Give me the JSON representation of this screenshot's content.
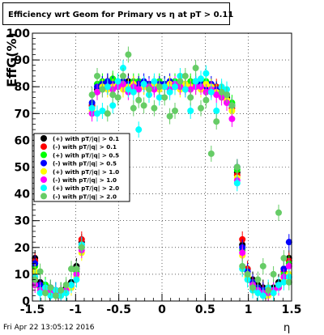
{
  "chart_data": {
    "type": "scatter",
    "title": "Efficiency wrt Geom for Primary vs  η at pT > 0.11",
    "xlabel": "η",
    "ylabel": "EffG(%)",
    "xlim": [
      -1.5,
      1.5
    ],
    "ylim": [
      0,
      100
    ],
    "x_ticks": [
      "-1.5",
      "-1",
      "-0.5",
      "0",
      "0.5",
      "1",
      "1.5"
    ],
    "y_ticks": [
      "0",
      "10",
      "20",
      "30",
      "40",
      "50",
      "60",
      "70",
      "80",
      "90",
      "100"
    ],
    "grid": true,
    "legend_position": "left-middle",
    "footer": "Fri Apr 22 13:05:12 2016",
    "series": [
      {
        "name": "(+) with pT/|q| > 0.1",
        "color": "#000000",
        "x": [
          -1.47,
          -1.41,
          -1.35,
          -1.29,
          -1.23,
          -1.17,
          -1.11,
          -1.05,
          -0.99,
          -0.93,
          -0.87,
          -0.81,
          -0.75,
          -0.69,
          -0.63,
          -0.57,
          -0.51,
          -0.45,
          -0.39,
          -0.33,
          -0.27,
          -0.21,
          -0.15,
          -0.09,
          -0.03,
          0.03,
          0.09,
          0.15,
          0.21,
          0.27,
          0.33,
          0.39,
          0.45,
          0.51,
          0.57,
          0.63,
          0.69,
          0.75,
          0.81,
          0.87,
          0.93,
          0.99,
          1.05,
          1.11,
          1.17,
          1.23,
          1.29,
          1.35,
          1.41,
          1.47
        ],
        "y": [
          16,
          7,
          6,
          5,
          4,
          4,
          5,
          7,
          13,
          22,
          49,
          73,
          79,
          81,
          82,
          81,
          80,
          81,
          82,
          81,
          80,
          81,
          81,
          80,
          80,
          81,
          80,
          80,
          81,
          81,
          80,
          81,
          80,
          81,
          80,
          79,
          78,
          76,
          73,
          48,
          21,
          12,
          8,
          6,
          5,
          4,
          5,
          7,
          12,
          16
        ]
      },
      {
        "name": "(-) with pT/|q| > 0.1",
        "color": "#ff0000",
        "x": [
          -1.47,
          -1.41,
          -1.35,
          -1.29,
          -1.23,
          -1.17,
          -1.11,
          -1.05,
          -0.99,
          -0.93,
          -0.87,
          -0.81,
          -0.75,
          -0.69,
          -0.63,
          -0.57,
          -0.51,
          -0.45,
          -0.39,
          -0.33,
          -0.27,
          -0.21,
          -0.15,
          -0.09,
          -0.03,
          0.03,
          0.09,
          0.15,
          0.21,
          0.27,
          0.33,
          0.39,
          0.45,
          0.51,
          0.57,
          0.63,
          0.69,
          0.75,
          0.81,
          0.87,
          0.93,
          0.99,
          1.05,
          1.11,
          1.17,
          1.23,
          1.29,
          1.35,
          1.41,
          1.47
        ],
        "y": [
          15,
          6,
          5,
          4,
          4,
          3,
          4,
          6,
          12,
          23,
          50,
          73,
          80,
          81,
          81,
          82,
          81,
          80,
          81,
          81,
          81,
          80,
          81,
          81,
          80,
          80,
          81,
          81,
          80,
          80,
          81,
          80,
          81,
          80,
          79,
          80,
          78,
          75,
          72,
          47,
          23,
          12,
          7,
          5,
          4,
          4,
          4,
          6,
          11,
          15
        ]
      },
      {
        "name": "(+) with pT/|q| > 0.5",
        "color": "#00ff00",
        "x": [
          -1.47,
          -1.41,
          -1.35,
          -1.29,
          -1.23,
          -1.17,
          -1.11,
          -1.05,
          -0.99,
          -0.93,
          -0.87,
          -0.81,
          -0.75,
          -0.69,
          -0.63,
          -0.57,
          -0.51,
          -0.45,
          -0.39,
          -0.33,
          -0.27,
          -0.21,
          -0.15,
          -0.09,
          -0.03,
          0.03,
          0.09,
          0.15,
          0.21,
          0.27,
          0.33,
          0.39,
          0.45,
          0.51,
          0.57,
          0.63,
          0.69,
          0.75,
          0.81,
          0.87,
          0.93,
          0.99,
          1.05,
          1.11,
          1.17,
          1.23,
          1.29,
          1.35,
          1.41,
          1.47
        ],
        "y": [
          13,
          5,
          6,
          4,
          3,
          4,
          3,
          6,
          11,
          20,
          51,
          72,
          81,
          82,
          80,
          83,
          82,
          81,
          80,
          82,
          82,
          81,
          80,
          81,
          82,
          81,
          80,
          82,
          81,
          80,
          82,
          81,
          81,
          82,
          80,
          79,
          79,
          77,
          74,
          49,
          19,
          10,
          6,
          5,
          3,
          3,
          4,
          5,
          10,
          14
        ]
      },
      {
        "name": "(-) with pT/|q| > 0.5",
        "color": "#0000ff",
        "x": [
          -1.47,
          -1.41,
          -1.35,
          -1.29,
          -1.23,
          -1.17,
          -1.11,
          -1.05,
          -0.99,
          -0.93,
          -0.87,
          -0.81,
          -0.75,
          -0.69,
          -0.63,
          -0.57,
          -0.51,
          -0.45,
          -0.39,
          -0.33,
          -0.27,
          -0.21,
          -0.15,
          -0.09,
          -0.03,
          0.03,
          0.09,
          0.15,
          0.21,
          0.27,
          0.33,
          0.39,
          0.45,
          0.51,
          0.57,
          0.63,
          0.69,
          0.75,
          0.81,
          0.87,
          0.93,
          0.99,
          1.05,
          1.11,
          1.17,
          1.23,
          1.29,
          1.35,
          1.41,
          1.47
        ],
        "y": [
          14,
          6,
          5,
          5,
          4,
          3,
          4,
          5,
          12,
          21,
          51,
          74,
          80,
          81,
          82,
          81,
          81,
          82,
          81,
          80,
          81,
          82,
          81,
          80,
          81,
          81,
          82,
          80,
          81,
          81,
          80,
          82,
          81,
          80,
          81,
          79,
          78,
          77,
          73,
          50,
          20,
          11,
          7,
          5,
          4,
          3,
          4,
          6,
          12,
          22
        ]
      },
      {
        "name": "(+) with pT/|q| > 1.0",
        "color": "#ffff00",
        "x": [
          -1.47,
          -1.41,
          -1.35,
          -1.29,
          -1.23,
          -1.17,
          -1.11,
          -1.05,
          -0.99,
          -0.93,
          -0.87,
          -0.81,
          -0.75,
          -0.69,
          -0.63,
          -0.57,
          -0.51,
          -0.45,
          -0.39,
          -0.33,
          -0.27,
          -0.21,
          -0.15,
          -0.09,
          -0.03,
          0.03,
          0.09,
          0.15,
          0.21,
          0.27,
          0.33,
          0.39,
          0.45,
          0.51,
          0.57,
          0.63,
          0.69,
          0.75,
          0.81,
          0.87,
          0.93,
          0.99,
          1.05,
          1.11,
          1.17,
          1.23,
          1.29,
          1.35,
          1.41,
          1.47
        ],
        "y": [
          11,
          4,
          3,
          3,
          2,
          2,
          3,
          5,
          9,
          18,
          47,
          71,
          78,
          80,
          79,
          80,
          81,
          79,
          80,
          81,
          79,
          80,
          80,
          81,
          79,
          80,
          81,
          80,
          79,
          81,
          80,
          80,
          79,
          81,
          80,
          78,
          77,
          75,
          71,
          46,
          17,
          9,
          5,
          4,
          2,
          2,
          3,
          5,
          8,
          10
        ]
      },
      {
        "name": "(-) with pT/|q| > 1.0",
        "color": "#ff00ff",
        "x": [
          -1.47,
          -1.41,
          -1.35,
          -1.29,
          -1.23,
          -1.17,
          -1.11,
          -1.05,
          -0.99,
          -0.93,
          -0.87,
          -0.81,
          -0.75,
          -0.69,
          -0.63,
          -0.57,
          -0.51,
          -0.45,
          -0.39,
          -0.33,
          -0.27,
          -0.21,
          -0.15,
          -0.09,
          -0.03,
          0.03,
          0.09,
          0.15,
          0.21,
          0.27,
          0.33,
          0.39,
          0.45,
          0.51,
          0.57,
          0.63,
          0.69,
          0.75,
          0.81,
          0.87,
          0.93,
          0.99,
          1.05,
          1.11,
          1.17,
          1.23,
          1.29,
          1.35,
          1.41,
          1.47
        ],
        "y": [
          6,
          4,
          4,
          3,
          3,
          3,
          4,
          6,
          10,
          19,
          46,
          70,
          78,
          79,
          80,
          79,
          80,
          81,
          78,
          80,
          79,
          81,
          80,
          79,
          80,
          80,
          79,
          81,
          80,
          79,
          79,
          80,
          80,
          78,
          79,
          77,
          76,
          74,
          68,
          45,
          18,
          10,
          6,
          4,
          3,
          3,
          4,
          5,
          9,
          13
        ]
      },
      {
        "name": "(+) with pT/|q| > 2.0",
        "color": "#00ffff",
        "x": [
          -1.47,
          -1.41,
          -1.35,
          -1.29,
          -1.23,
          -1.17,
          -1.11,
          -1.05,
          -0.99,
          -0.93,
          -0.87,
          -0.81,
          -0.75,
          -0.69,
          -0.63,
          -0.57,
          -0.51,
          -0.45,
          -0.39,
          -0.33,
          -0.27,
          -0.21,
          -0.15,
          -0.09,
          -0.03,
          0.03,
          0.09,
          0.15,
          0.21,
          0.27,
          0.33,
          0.39,
          0.45,
          0.51,
          0.57,
          0.63,
          0.69,
          0.75,
          0.81,
          0.87,
          0.93,
          0.99,
          1.05,
          1.11,
          1.17,
          1.23,
          1.29,
          1.35,
          1.41,
          1.47
        ],
        "y": [
          9,
          3,
          5,
          2,
          4,
          2,
          3,
          6,
          8,
          21,
          45,
          72,
          70,
          71,
          80,
          73,
          82,
          87,
          79,
          78,
          64,
          81,
          77,
          82,
          76,
          80,
          78,
          80,
          84,
          79,
          71,
          82,
          83,
          85,
          78,
          71,
          80,
          79,
          73,
          44,
          12,
          8,
          4,
          3,
          2,
          5,
          3,
          6,
          7,
          9
        ]
      },
      {
        "name": "(-) with pT/|q| > 2.0",
        "color": "#66cc66",
        "x": [
          -1.47,
          -1.41,
          -1.35,
          -1.29,
          -1.23,
          -1.17,
          -1.11,
          -1.05,
          -0.99,
          -0.93,
          -0.87,
          -0.81,
          -0.75,
          -0.69,
          -0.63,
          -0.57,
          -0.51,
          -0.45,
          -0.39,
          -0.33,
          -0.27,
          -0.21,
          -0.15,
          -0.09,
          -0.03,
          0.03,
          0.09,
          0.15,
          0.21,
          0.27,
          0.33,
          0.39,
          0.45,
          0.51,
          0.57,
          0.63,
          0.69,
          0.75,
          0.81,
          0.87,
          0.93,
          0.99,
          1.05,
          1.11,
          1.17,
          1.23,
          1.29,
          1.35,
          1.41,
          1.47
        ],
        "y": [
          8,
          11,
          3,
          5,
          2,
          4,
          6,
          12,
          12,
          20,
          46,
          77,
          84,
          79,
          70,
          77,
          76,
          84,
          92,
          72,
          75,
          73,
          79,
          72,
          80,
          76,
          69,
          71,
          82,
          84,
          76,
          87,
          72,
          75,
          55,
          67,
          78,
          77,
          73,
          50,
          13,
          10,
          5,
          8,
          13,
          4,
          10,
          33,
          16,
          7
        ]
      }
    ]
  }
}
